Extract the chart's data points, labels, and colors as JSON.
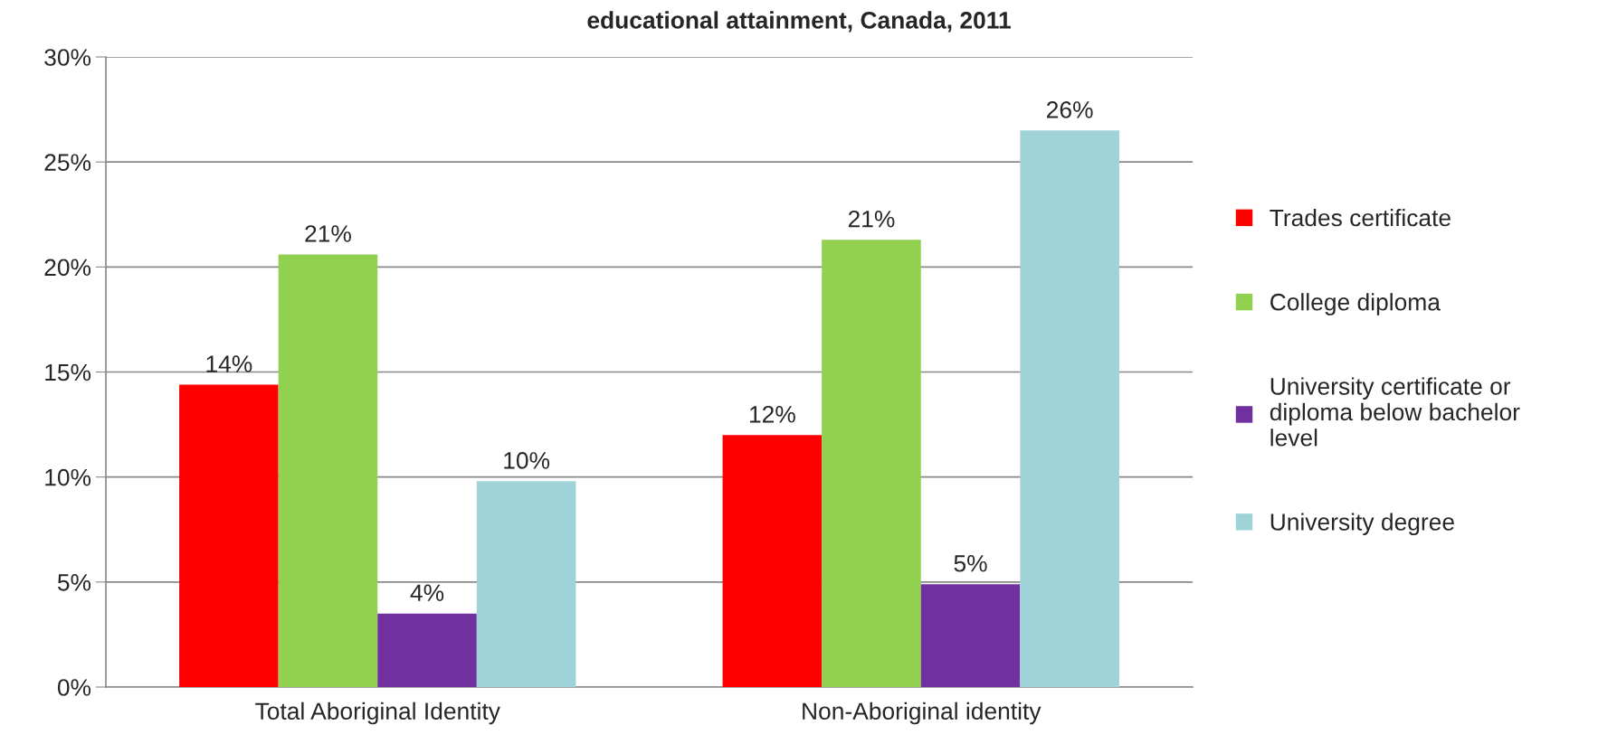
{
  "chart_data": {
    "type": "bar",
    "title": "educational attainment, Canada, 2011",
    "categories": [
      "Total Aboriginal Identity",
      "Non-Aboriginal identity"
    ],
    "series": [
      {
        "name": "Trades certificate",
        "color": "#ff0000",
        "values": [
          14.4,
          12.0
        ],
        "value_labels": [
          "14%",
          "12%"
        ]
      },
      {
        "name": "College diploma",
        "color": "#92d050",
        "values": [
          20.6,
          21.3
        ],
        "value_labels": [
          "21%",
          "21%"
        ]
      },
      {
        "name": "University certificate or\ndiploma below bachelor\nlevel",
        "color": "#7030a0",
        "values": [
          3.5,
          4.9
        ],
        "value_labels": [
          "4%",
          "5%"
        ]
      },
      {
        "name": "University degree",
        "color": "#a0d3d7",
        "values": [
          9.8,
          26.5
        ],
        "value_labels": [
          "10%",
          "26%"
        ]
      }
    ],
    "ylim": [
      0,
      30
    ],
    "yticks": [
      {
        "value": 0,
        "label": "0%"
      },
      {
        "value": 5,
        "label": "5%"
      },
      {
        "value": 10,
        "label": "10%"
      },
      {
        "value": 15,
        "label": "15%"
      },
      {
        "value": 20,
        "label": "20%"
      },
      {
        "value": 25,
        "label": "25%"
      },
      {
        "value": 30,
        "label": "30%"
      }
    ],
    "grid": "y",
    "legend": "right"
  }
}
